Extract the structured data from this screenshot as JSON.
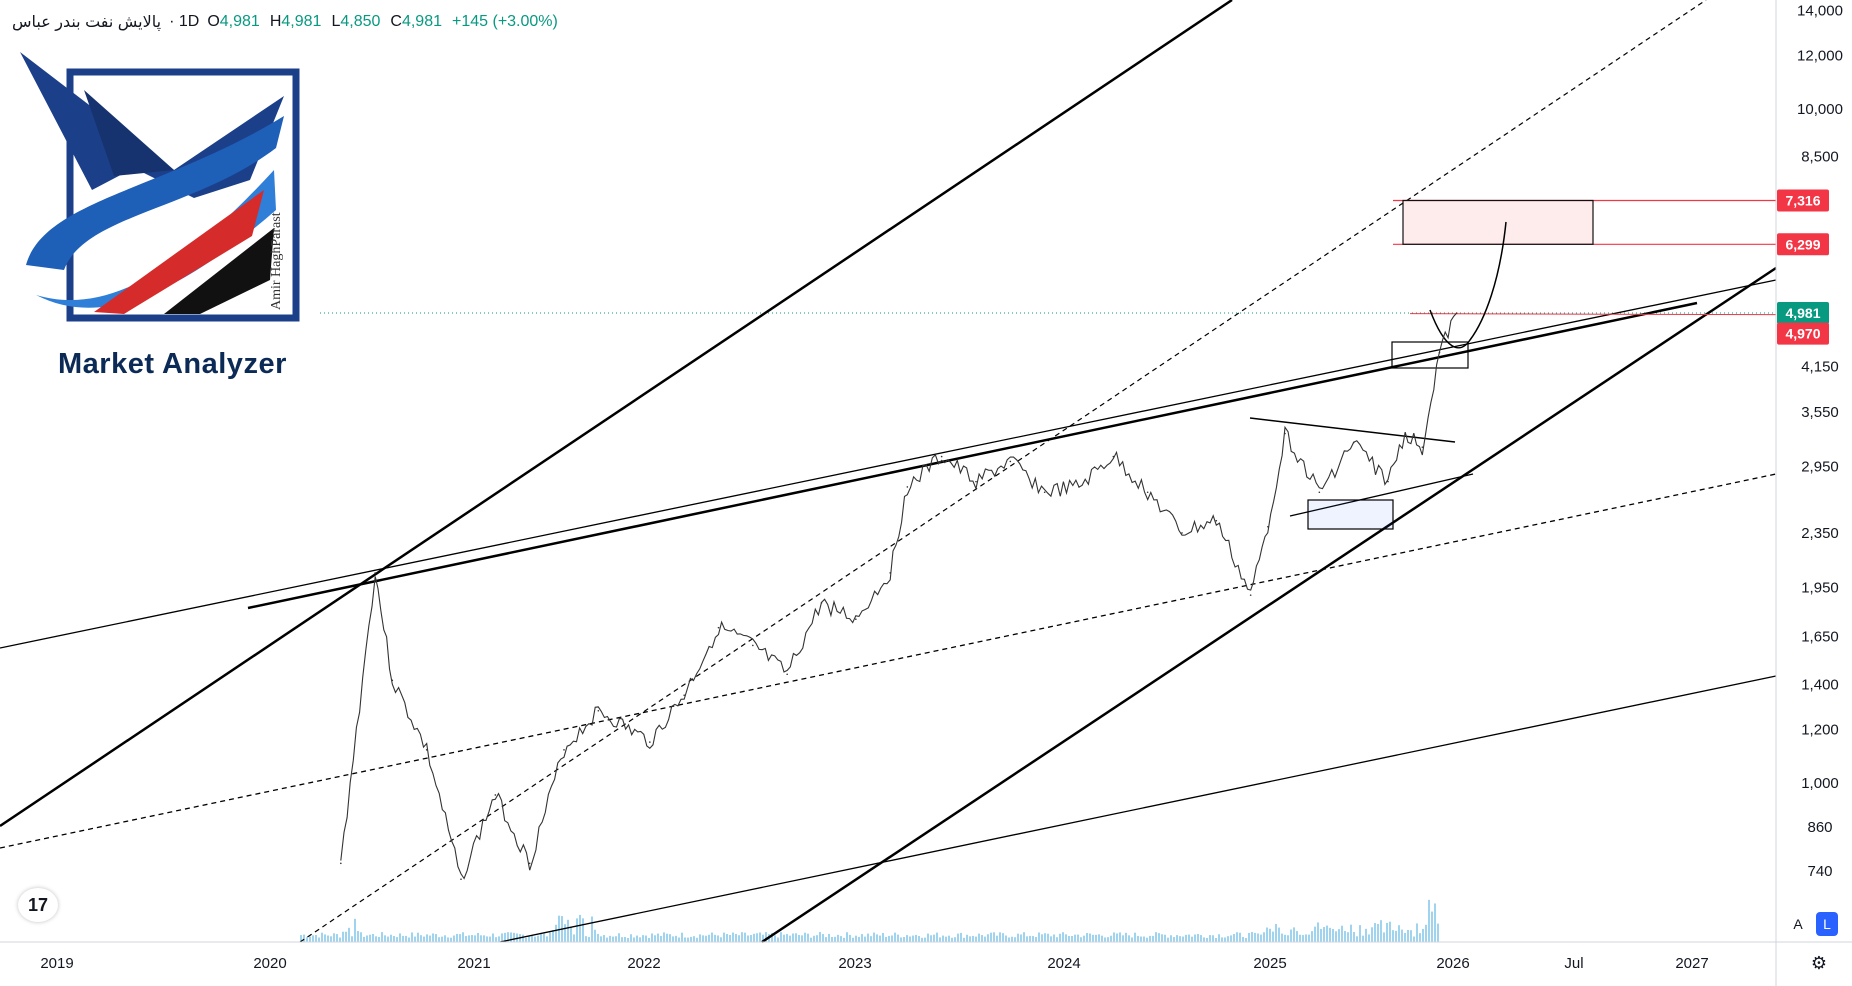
{
  "header": {
    "symbol": "پالایش نفت بندر عباس",
    "interval": "· 1D",
    "open_label": "O",
    "open": "4,981",
    "high_label": "H",
    "high": "4,981",
    "low_label": "L",
    "low": "4,850",
    "close_label": "C",
    "close": "4,981",
    "change": "+145 (+3.00%)"
  },
  "logo": {
    "brand": "Market Analyzer",
    "author": "Amir HaghParast"
  },
  "tv_badge": "17",
  "price_axis_buttons": {
    "auto": "A",
    "log": "L"
  },
  "colors": {
    "up": "#089981",
    "down": "#f23645",
    "target_zone": "#f23645",
    "volume": "#7fc4e8",
    "logo_blue": "#1e5fb8",
    "logo_red": "#d62b2b"
  },
  "chart_data": {
    "type": "line",
    "scale": "log",
    "x_ticks": [
      "2019",
      "2020",
      "2021",
      "2022",
      "2023",
      "2024",
      "2025",
      "2026",
      "Jul",
      "2027"
    ],
    "y_ticks": [
      "740",
      "860",
      "1,000",
      "1,200",
      "1,400",
      "1,650",
      "1,950",
      "2,350",
      "2,950",
      "3,550",
      "4,150",
      "8,500",
      "10,000",
      "12,000",
      "14,000"
    ],
    "price_labels": [
      {
        "text": "7,316",
        "value": 7316,
        "color": "#f23645"
      },
      {
        "text": "6,299",
        "value": 6299,
        "color": "#f23645"
      },
      {
        "text": "4,981",
        "value": 4981,
        "color": "#089981"
      },
      {
        "text": "4,970",
        "value": 4970,
        "color": "#f23645"
      }
    ],
    "series": [
      {
        "x": [
          "2020-06",
          "2020-08",
          "2020-09",
          "2020-11",
          "2021-01",
          "2021-03",
          "2021-05",
          "2021-07",
          "2021-09",
          "2021-12",
          "2022-02",
          "2022-04",
          "2022-06",
          "2022-08",
          "2022-10",
          "2022-12",
          "2023-02",
          "2023-03",
          "2023-05",
          "2023-07",
          "2023-09",
          "2023-11",
          "2024-01",
          "2024-03",
          "2024-05",
          "2024-07",
          "2024-09",
          "2024-11",
          "2024-12",
          "2025-01",
          "2025-03",
          "2025-05",
          "2025-07",
          "2025-08",
          "2025-09",
          "2025-10",
          "2025-11"
        ],
        "y": [
          760,
          2050,
          1420,
          1120,
          720,
          960,
          760,
          1120,
          1280,
          1150,
          1350,
          1700,
          1600,
          1450,
          1850,
          1750,
          2050,
          2750,
          3050,
          2800,
          3000,
          2700,
          2750,
          3050,
          2700,
          2350,
          2450,
          1900,
          2400,
          3300,
          2700,
          3200,
          2800,
          3300,
          3150,
          4350,
          4981
        ]
      }
    ]
  }
}
